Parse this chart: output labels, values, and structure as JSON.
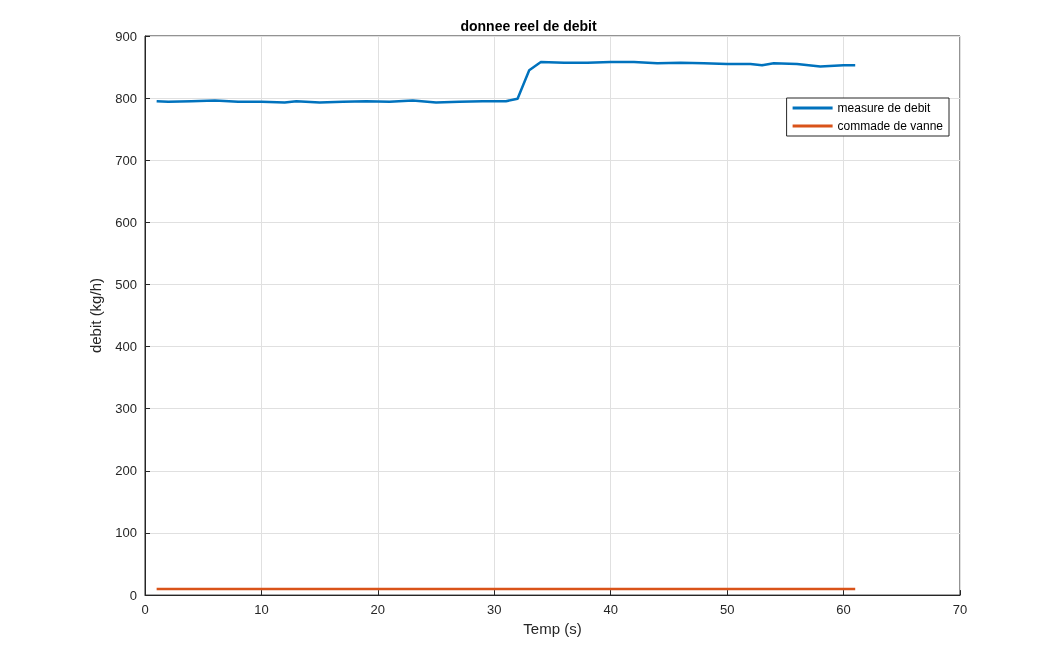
{
  "chart_data": {
    "type": "line",
    "title": "donnee reel de debit",
    "xlabel": "Temp (s)",
    "ylabel": "debit (kg/h)",
    "xlim": [
      0,
      70
    ],
    "xticks": [
      0,
      10,
      20,
      30,
      40,
      50,
      60,
      70
    ],
    "ylim": [
      0,
      900
    ],
    "yticks": [
      0,
      100,
      200,
      300,
      400,
      500,
      600,
      700,
      800,
      900
    ],
    "grid": true,
    "legend": "top right",
    "line_style": "solid",
    "marker": "none",
    "series": [
      {
        "name": "measure de debit",
        "color": "#0072bd",
        "x": [
          1,
          2,
          4,
          6,
          8,
          10,
          12,
          13,
          15,
          17,
          19,
          21,
          23,
          25,
          27,
          29,
          31,
          32,
          33,
          34,
          36,
          38,
          40,
          42,
          44,
          46,
          48,
          50,
          52,
          53,
          54,
          56,
          58,
          60,
          61
        ],
        "values": [
          795,
          794,
          795,
          796,
          794,
          794,
          793,
          795,
          793,
          794,
          795,
          794,
          796,
          793,
          794,
          795,
          795,
          799,
          845,
          858,
          857,
          857,
          858,
          858,
          856,
          857,
          856,
          855,
          855,
          853,
          856,
          855,
          851,
          853,
          853
        ]
      },
      {
        "name": "commade de vanne",
        "color": "#d95319",
        "x": [
          1,
          61
        ],
        "values": [
          10,
          10
        ]
      }
    ]
  }
}
